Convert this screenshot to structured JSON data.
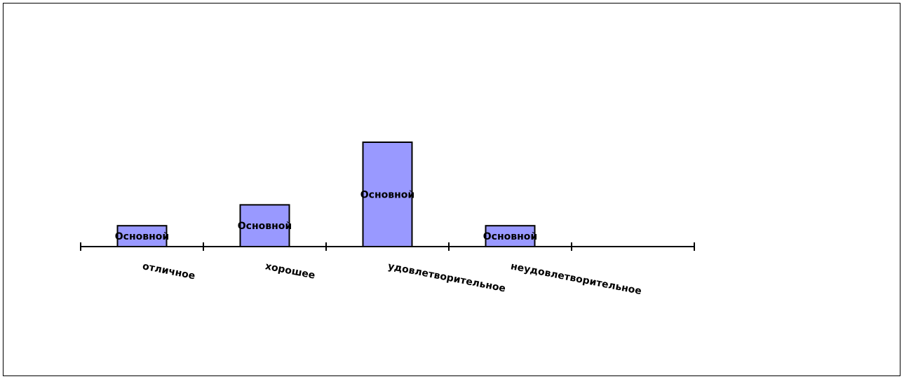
{
  "chart_data": {
    "type": "bar",
    "categories": [
      "отличное",
      "хорошее",
      "удовлетворительное",
      "неудовлетворительное"
    ],
    "series": [
      {
        "name": "Основной",
        "values": [
          1,
          2,
          5,
          1
        ]
      }
    ],
    "data_labels": [
      "Основной",
      "Основной",
      "Основной",
      "Основной"
    ],
    "bar_color": "#9999ff",
    "bar_border_color": "#000000",
    "title": "",
    "xlabel": "",
    "ylabel": "",
    "ylim": [
      0,
      5
    ],
    "x_slots": 5,
    "grid": false,
    "legend": "none"
  }
}
